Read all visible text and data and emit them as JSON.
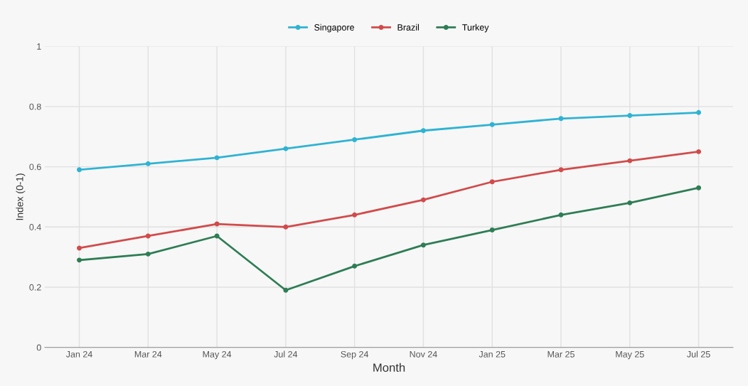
{
  "chart_data": {
    "type": "line",
    "xlabel": "Month",
    "ylabel": "Index (0-1)",
    "categories": [
      "Jan 24",
      "Mar 24",
      "May 24",
      "Jul 24",
      "Sep 24",
      "Nov 24",
      "Jan 25",
      "Mar 25",
      "May 25",
      "Jul 25"
    ],
    "series": [
      {
        "name": "Singapore",
        "color": "#2fb3d3",
        "values": [
          0.59,
          0.61,
          0.63,
          0.66,
          0.69,
          0.72,
          0.74,
          0.76,
          0.77,
          0.78
        ]
      },
      {
        "name": "Brazil",
        "color": "#d24b4b",
        "values": [
          0.33,
          0.37,
          0.41,
          0.4,
          0.44,
          0.49,
          0.55,
          0.59,
          0.62,
          0.65
        ]
      },
      {
        "name": "Turkey",
        "color": "#2e7d55",
        "values": [
          0.29,
          0.31,
          0.37,
          0.19,
          0.27,
          0.34,
          0.39,
          0.44,
          0.48,
          0.53
        ]
      }
    ],
    "ylim": [
      0,
      1
    ],
    "yticks": [
      0,
      0.2,
      0.4,
      0.6,
      0.8,
      1
    ],
    "grid": true,
    "legend": "top",
    "marker": "circle",
    "line_style": "solid"
  }
}
